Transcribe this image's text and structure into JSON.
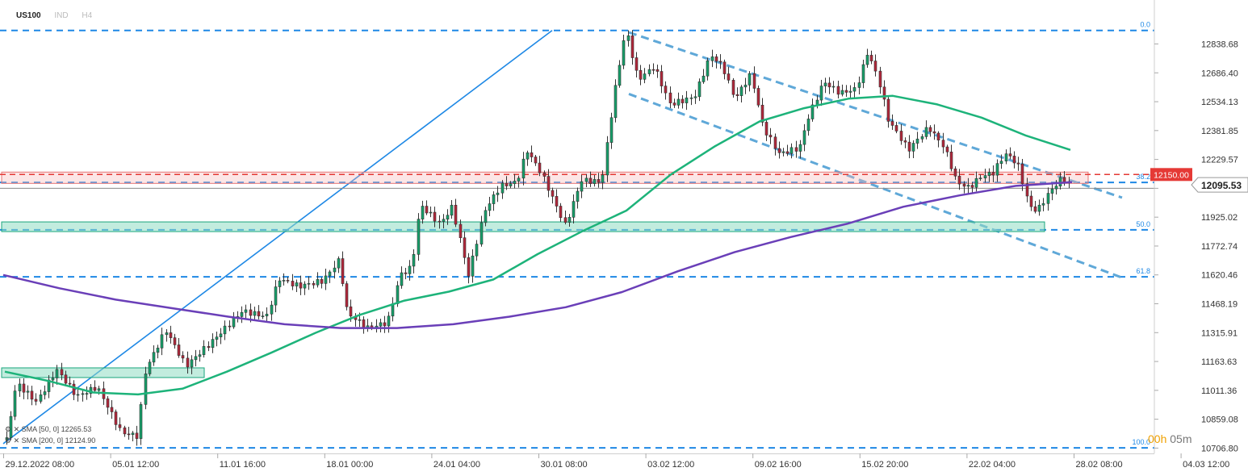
{
  "header": {
    "symbol": "US100",
    "currency": "IND",
    "timeframe": "H4"
  },
  "indicators": [
    {
      "label": "SMA [50, 0] 12265.53",
      "color": "#1db37a"
    },
    {
      "label": "SMA [200, 0] 12124.90",
      "color": "#6a3fb8"
    }
  ],
  "countdown": {
    "hours": "00h",
    "minutes": "05m"
  },
  "colors": {
    "up_candle": "#16a06a",
    "down_candle": "#b2263a",
    "fib": "#1e88e5",
    "channel": "#5fa8d8",
    "resistance": "#e53935",
    "support_zone": "#8fdcc2"
  },
  "chart_data": {
    "type": "candlestick",
    "x_ticks": [
      "29.12.2022 08:00",
      "05.01 12:00",
      "11.01 16:00",
      "18.01 00:00",
      "24.01 04:00",
      "30.01 08:00",
      "03.02 12:00",
      "09.02 16:00",
      "15.02 20:00",
      "22.02 04:00",
      "28.02 08:00",
      "04.03 12:00"
    ],
    "y_ticks": [
      "12838.68",
      "12686.40",
      "12534.13",
      "12381.85",
      "12229.57",
      "12077.30",
      "11925.02",
      "11772.74",
      "11620.46",
      "11468.19",
      "11315.91",
      "11163.63",
      "11011.36",
      "10859.08",
      "10706.80"
    ],
    "ylim": [
      10706.8,
      12838.68
    ],
    "current_price": "12095.53",
    "resistance": {
      "level": 12150.0,
      "label": "12150.00"
    },
    "fibonacci": [
      {
        "label": "0.0",
        "value": 12910
      },
      {
        "label": "38.2",
        "value": 12108
      },
      {
        "label": "50.0",
        "value": 11858
      },
      {
        "label": "61.8",
        "value": 11610
      },
      {
        "label": "100.0",
        "value": 10708
      }
    ],
    "sma50": [
      11110,
      11060,
      11000,
      10990,
      11020,
      11110,
      11210,
      11315,
      11410,
      11485,
      11532,
      11596,
      11730,
      11850,
      11960,
      12150,
      12300,
      12430,
      12500,
      12550,
      12565,
      12520,
      12450,
      12355,
      12280
    ],
    "sma200": [
      11620,
      11550,
      11490,
      11445,
      11400,
      11360,
      11340,
      11340,
      11360,
      11400,
      11450,
      11530,
      11640,
      11740,
      11820,
      11890,
      11980,
      12040,
      12090,
      12110
    ]
  }
}
